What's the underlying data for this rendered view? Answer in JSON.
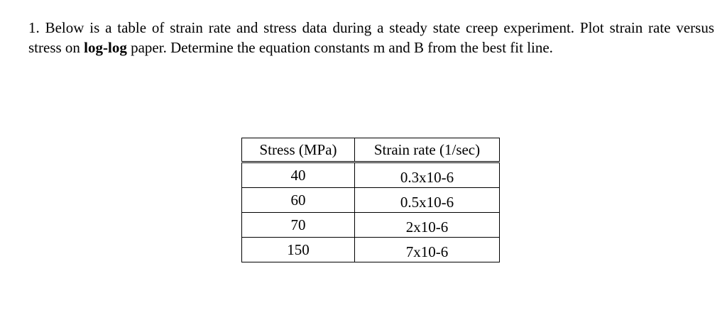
{
  "problem": {
    "number": "1.",
    "text_before_bold": "Below is a table of strain rate and stress data during a steady state creep experiment. Plot strain rate versus stress on ",
    "bold_text": "log-log",
    "text_after_bold": " paper.  Determine the equation constants m and B from the best fit line."
  },
  "table": {
    "headers": [
      "Stress (MPa)",
      "Strain rate (1/sec)"
    ],
    "rows": [
      {
        "stress": "40",
        "strain_rate": "0.3x10-6"
      },
      {
        "stress": "60",
        "strain_rate": "0.5x10-6"
      },
      {
        "stress": "70",
        "strain_rate": "2x10-6"
      },
      {
        "stress": "150",
        "strain_rate": "7x10-6"
      }
    ]
  }
}
